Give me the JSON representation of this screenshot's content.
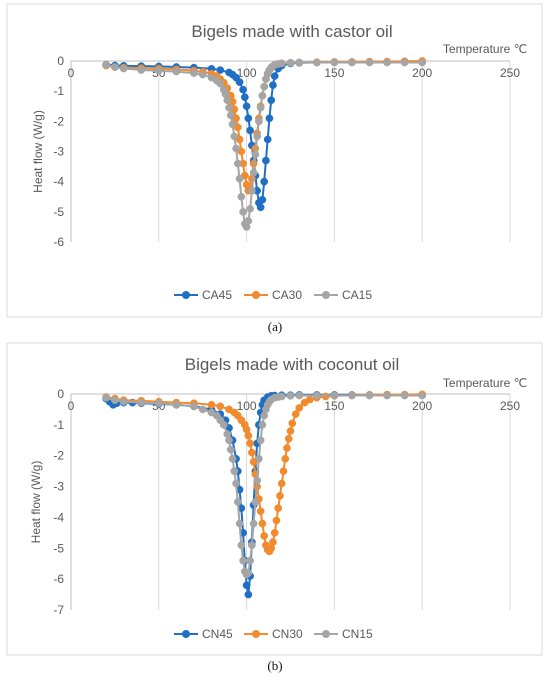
{
  "chart_data": [
    {
      "type": "scatter",
      "panel_label": "(a)",
      "title": "Bigels made with castor oil",
      "xlabel": "Temperature ℃",
      "ylabel": "Heat flow (W/g)",
      "xlim": [
        0,
        250
      ],
      "ylim": [
        -6,
        0
      ],
      "x_ticks": [
        "0",
        "50",
        "100",
        "150",
        "200",
        "250"
      ],
      "y_ticks": [
        "0",
        "-1",
        "-2",
        "-3",
        "-4",
        "-5",
        "-6"
      ],
      "legend_position": "bottom",
      "grid": "vertical",
      "series": [
        {
          "name": "CA45",
          "color": "#1f6fc5",
          "x": [
            20,
            25,
            30,
            40,
            50,
            60,
            70,
            80,
            85,
            90,
            92,
            94,
            96,
            98,
            99,
            100,
            101,
            102,
            103,
            104,
            105,
            106,
            107,
            108,
            109,
            110,
            111,
            112,
            113,
            114,
            115,
            116,
            118,
            120,
            125,
            130,
            140,
            150,
            160,
            170,
            180,
            190,
            200
          ],
          "y": [
            -0.12,
            -0.15,
            -0.16,
            -0.17,
            -0.18,
            -0.2,
            -0.22,
            -0.26,
            -0.3,
            -0.38,
            -0.45,
            -0.55,
            -0.7,
            -0.95,
            -1.2,
            -1.5,
            -1.9,
            -2.3,
            -2.8,
            -3.3,
            -3.8,
            -4.3,
            -4.7,
            -4.85,
            -4.6,
            -4.0,
            -3.3,
            -2.6,
            -1.9,
            -1.3,
            -0.8,
            -0.5,
            -0.25,
            -0.15,
            -0.08,
            -0.06,
            -0.05,
            -0.04,
            -0.04,
            -0.03,
            -0.03,
            -0.03,
            -0.03
          ]
        },
        {
          "name": "CA30",
          "color": "#f28a2e",
          "x": [
            20,
            25,
            30,
            40,
            50,
            60,
            70,
            75,
            80,
            83,
            85,
            87,
            89,
            91,
            92,
            93,
            94,
            95,
            96,
            97,
            98,
            99,
            100,
            101,
            102,
            103,
            104,
            105,
            106,
            107,
            108,
            109,
            110,
            111,
            112,
            113,
            114,
            115,
            116,
            118,
            120,
            125,
            130,
            140,
            150,
            160,
            170,
            180,
            190,
            200
          ],
          "y": [
            -0.15,
            -0.2,
            -0.22,
            -0.24,
            -0.25,
            -0.28,
            -0.32,
            -0.36,
            -0.42,
            -0.5,
            -0.6,
            -0.72,
            -0.9,
            -1.15,
            -1.35,
            -1.6,
            -1.9,
            -2.2,
            -2.6,
            -3.0,
            -3.4,
            -3.8,
            -4.1,
            -4.3,
            -4.2,
            -3.9,
            -3.4,
            -2.9,
            -2.4,
            -1.9,
            -1.5,
            -1.15,
            -0.85,
            -0.6,
            -0.42,
            -0.3,
            -0.22,
            -0.17,
            -0.13,
            -0.1,
            -0.08,
            -0.06,
            -0.05,
            -0.04,
            -0.03,
            -0.03,
            -0.02,
            -0.02,
            -0.01,
            0.0
          ]
        },
        {
          "name": "CA15",
          "color": "#a5a5a5",
          "x": [
            20,
            25,
            30,
            40,
            50,
            60,
            70,
            75,
            80,
            83,
            85,
            87,
            88,
            89,
            90,
            91,
            92,
            93,
            94,
            95,
            96,
            97,
            98,
            99,
            100,
            101,
            102,
            103,
            104,
            105,
            106,
            107,
            108,
            109,
            110,
            111,
            112,
            113,
            114,
            115,
            116,
            118,
            120,
            125,
            130,
            140,
            150,
            160,
            170,
            180,
            190,
            200
          ],
          "y": [
            -0.12,
            -0.2,
            -0.25,
            -0.3,
            -0.32,
            -0.35,
            -0.4,
            -0.45,
            -0.55,
            -0.65,
            -0.75,
            -0.95,
            -1.1,
            -1.3,
            -1.55,
            -1.8,
            -2.1,
            -2.5,
            -2.9,
            -3.4,
            -3.9,
            -4.5,
            -5.0,
            -5.4,
            -5.5,
            -5.3,
            -4.9,
            -4.3,
            -3.7,
            -3.1,
            -2.5,
            -2.0,
            -1.55,
            -1.15,
            -0.85,
            -0.6,
            -0.42,
            -0.3,
            -0.22,
            -0.17,
            -0.13,
            -0.1,
            -0.08,
            -0.06,
            -0.05,
            -0.05,
            -0.05,
            -0.05,
            -0.05,
            -0.05,
            -0.05,
            -0.05
          ]
        }
      ]
    },
    {
      "type": "scatter",
      "panel_label": "(b)",
      "title": "Bigels made with coconut oil",
      "xlabel": "Temperature ℃",
      "ylabel": "Heat flow (W/g)",
      "xlim": [
        0,
        250
      ],
      "ylim": [
        -7,
        0
      ],
      "x_ticks": [
        "0",
        "50",
        "100",
        "150",
        "200",
        "250"
      ],
      "y_ticks": [
        "0",
        "-1",
        "-2",
        "-3",
        "-4",
        "-5",
        "-6",
        "-7"
      ],
      "legend_position": "bottom",
      "grid": "vertical",
      "series": [
        {
          "name": "CN45",
          "color": "#1f6fc5",
          "x": [
            20,
            22,
            24,
            26,
            30,
            35,
            40,
            50,
            60,
            70,
            80,
            85,
            88,
            90,
            92,
            94,
            95,
            96,
            97,
            98,
            99,
            100,
            101,
            102,
            103,
            104,
            105,
            106,
            107,
            108,
            109,
            110,
            112,
            114,
            116,
            120,
            125,
            130,
            140,
            150,
            160,
            170,
            180,
            190,
            200
          ],
          "y": [
            -0.15,
            -0.25,
            -0.35,
            -0.3,
            -0.28,
            -0.28,
            -0.3,
            -0.32,
            -0.35,
            -0.4,
            -0.5,
            -0.65,
            -0.85,
            -1.1,
            -1.5,
            -2.1,
            -2.5,
            -3.1,
            -3.7,
            -4.5,
            -5.4,
            -6.2,
            -6.5,
            -5.9,
            -4.8,
            -3.6,
            -2.5,
            -1.6,
            -1.0,
            -0.6,
            -0.35,
            -0.2,
            -0.1,
            -0.06,
            -0.05,
            -0.04,
            -0.04,
            -0.03,
            -0.03,
            -0.03,
            -0.03,
            -0.03,
            -0.03,
            -0.03,
            -0.03
          ]
        },
        {
          "name": "CN30",
          "color": "#f28a2e",
          "x": [
            20,
            25,
            30,
            40,
            50,
            60,
            70,
            80,
            85,
            90,
            93,
            95,
            97,
            99,
            100,
            101,
            102,
            103,
            104,
            105,
            106,
            107,
            108,
            109,
            110,
            111,
            112,
            113,
            114,
            115,
            116,
            117,
            118,
            119,
            120,
            121,
            122,
            123,
            124,
            125,
            126,
            128,
            130,
            133,
            136,
            140,
            145,
            150,
            160,
            170,
            180,
            190,
            200
          ],
          "y": [
            -0.1,
            -0.15,
            -0.2,
            -0.22,
            -0.25,
            -0.28,
            -0.3,
            -0.35,
            -0.4,
            -0.5,
            -0.6,
            -0.7,
            -0.85,
            -1.0,
            -1.15,
            -1.35,
            -1.6,
            -1.9,
            -2.2,
            -2.6,
            -3.0,
            -3.4,
            -3.8,
            -4.2,
            -4.6,
            -4.9,
            -5.05,
            -5.1,
            -5.0,
            -4.8,
            -4.5,
            -4.1,
            -3.7,
            -3.3,
            -2.9,
            -2.5,
            -2.1,
            -1.75,
            -1.45,
            -1.2,
            -0.95,
            -0.65,
            -0.45,
            -0.28,
            -0.18,
            -0.12,
            -0.08,
            -0.06,
            -0.04,
            -0.03,
            -0.02,
            -0.02,
            -0.01
          ]
        },
        {
          "name": "CN15",
          "color": "#a5a5a5",
          "x": [
            20,
            25,
            30,
            40,
            50,
            60,
            70,
            75,
            80,
            83,
            85,
            87,
            89,
            90,
            91,
            92,
            93,
            94,
            95,
            96,
            97,
            98,
            99,
            100,
            101,
            102,
            103,
            104,
            105,
            106,
            107,
            108,
            109,
            110,
            111,
            112,
            113,
            114,
            116,
            118,
            120,
            125,
            130,
            140,
            150,
            160,
            170,
            180,
            190,
            200
          ],
          "y": [
            -0.12,
            -0.2,
            -0.25,
            -0.28,
            -0.3,
            -0.35,
            -0.4,
            -0.5,
            -0.6,
            -0.7,
            -0.85,
            -1.0,
            -1.3,
            -1.5,
            -1.8,
            -2.1,
            -2.5,
            -2.9,
            -3.5,
            -4.2,
            -4.9,
            -5.4,
            -5.75,
            -5.85,
            -5.8,
            -5.4,
            -4.9,
            -4.2,
            -3.5,
            -2.8,
            -2.1,
            -1.5,
            -1.0,
            -0.7,
            -0.5,
            -0.35,
            -0.25,
            -0.18,
            -0.12,
            -0.1,
            -0.08,
            -0.06,
            -0.05,
            -0.05,
            -0.05,
            -0.05,
            -0.05,
            -0.05,
            -0.05,
            -0.05
          ]
        }
      ]
    }
  ]
}
